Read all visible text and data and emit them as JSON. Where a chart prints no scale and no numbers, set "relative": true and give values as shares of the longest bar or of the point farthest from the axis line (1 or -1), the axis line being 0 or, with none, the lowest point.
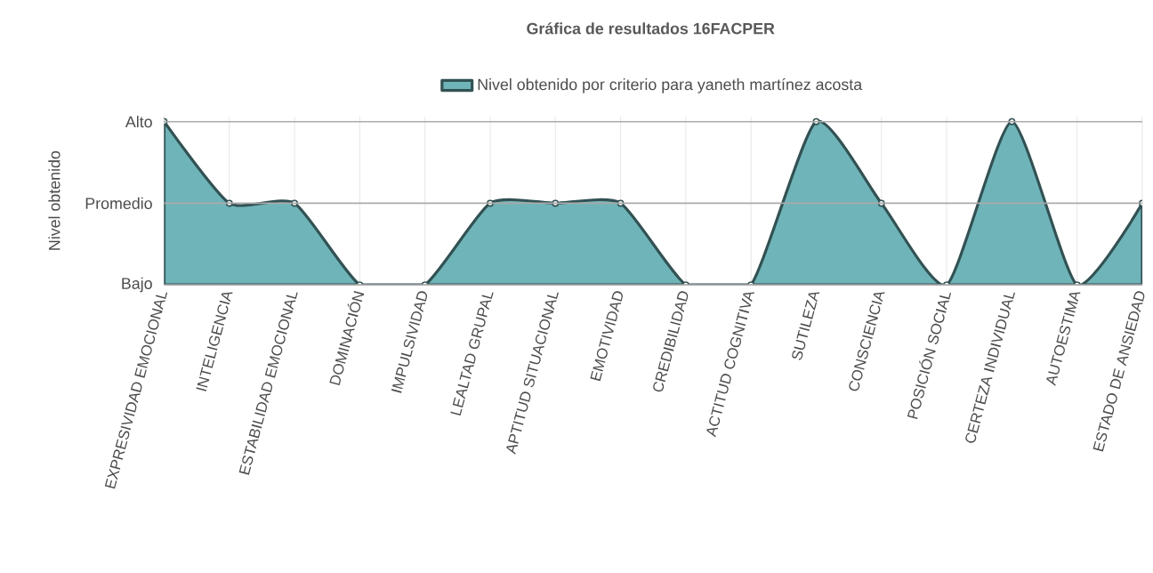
{
  "chart_data": {
    "type": "area",
    "title": "Gráfica de resultados 16FACPER",
    "ylabel": "Nivel obtenido",
    "categories": [
      "EXPRESIVIDAD EMOCIONAL",
      "INTELIGENCIA",
      "ESTABILIDAD EMOCIONAL",
      "DOMINACIÓN",
      "IMPULSIVIDAD",
      "LEALTAD GRUPAL",
      "APTITUD SITUACIONAL",
      "EMOTIVIDAD",
      "CREDIBILIDAD",
      "ACTITUD COGNITIVA",
      "SUTILEZA",
      "CONSCIENCIA",
      "POSICIÓN SOCIAL",
      "CERTEZA INDIVIDUAL",
      "AUTOESTIMA",
      "ESTADO DE ANSIEDAD"
    ],
    "series": [
      {
        "name": "Nivel obtenido por criterio para yaneth martínez acosta",
        "color": "#6fb4b8",
        "values": [
          1,
          0.5,
          0.5,
          0,
          0,
          0.5,
          0.5,
          0.5,
          0,
          0,
          1,
          0.5,
          0,
          1,
          0,
          0.5
        ]
      }
    ],
    "relative": true,
    "ref_lines": [
      {
        "axis": "y",
        "value": 0,
        "label": "Bajo",
        "color": "#aaaaaa"
      },
      {
        "axis": "y",
        "value": 0.5,
        "label": "Promedio",
        "color": "#aaaaaa"
      },
      {
        "axis": "y",
        "value": 1,
        "label": "Alto",
        "color": "#aaaaaa"
      }
    ],
    "grid": "x",
    "legend": "top",
    "marker": "circle",
    "line_style": "solid"
  }
}
